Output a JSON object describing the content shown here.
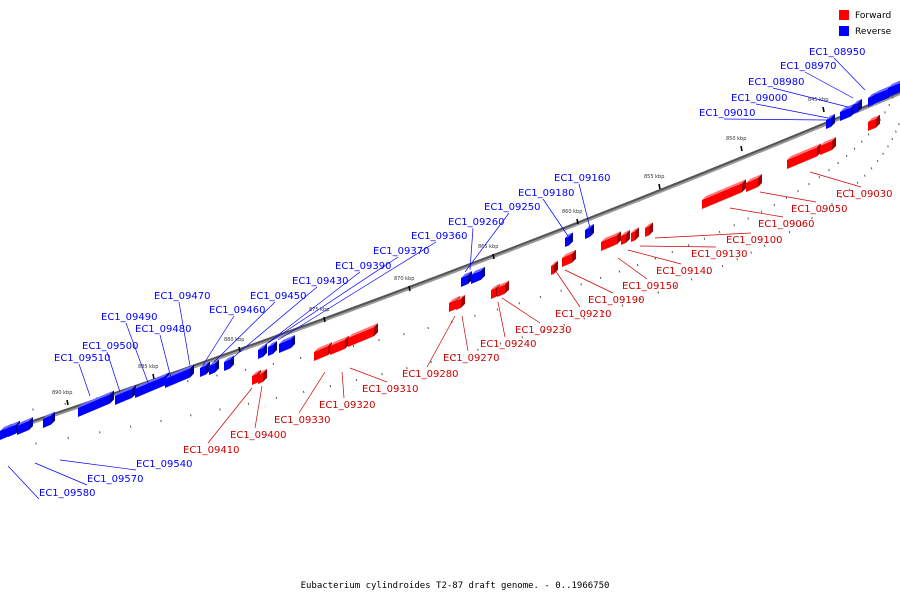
{
  "legend": {
    "forward_label": "Forward",
    "reverse_label": "Reverse",
    "forward_color": "#ff0000",
    "reverse_color": "#0000ff"
  },
  "caption": "Eubacterium cylindroides T2-87 draft genome. - 0..1966750",
  "kbp_marks": [
    "845 kbp",
    "850 kbp",
    "855 kbp",
    "860 kbp",
    "865 kbp",
    "870 kbp",
    "875 kbp",
    "880 kbp",
    "885 kbp",
    "890 kbp"
  ],
  "reverse_labels": [
    "EC1_08950",
    "EC1_08970",
    "EC1_08980",
    "EC1_09000",
    "EC1_09010",
    "EC1_09160",
    "EC1_09180",
    "EC1_09250",
    "EC1_09260",
    "EC1_09360",
    "EC1_09370",
    "EC1_09390",
    "EC1_09430",
    "EC1_09450",
    "EC1_09460",
    "EC1_09470",
    "EC1_09480",
    "EC1_09490",
    "EC1_09500",
    "EC1_09510",
    "EC1_09540",
    "EC1_09570",
    "EC1_09580"
  ],
  "forward_labels": [
    "EC1_09030",
    "EC1_09050",
    "EC1_09060",
    "EC1_09100",
    "EC1_09130",
    "EC1_09140",
    "EC1_09150",
    "EC1_09190",
    "EC1_09210",
    "EC1_09230",
    "EC1_09240",
    "EC1_09270",
    "EC1_09280",
    "EC1_09310",
    "EC1_09320",
    "EC1_09330",
    "EC1_09400",
    "EC1_09410"
  ]
}
